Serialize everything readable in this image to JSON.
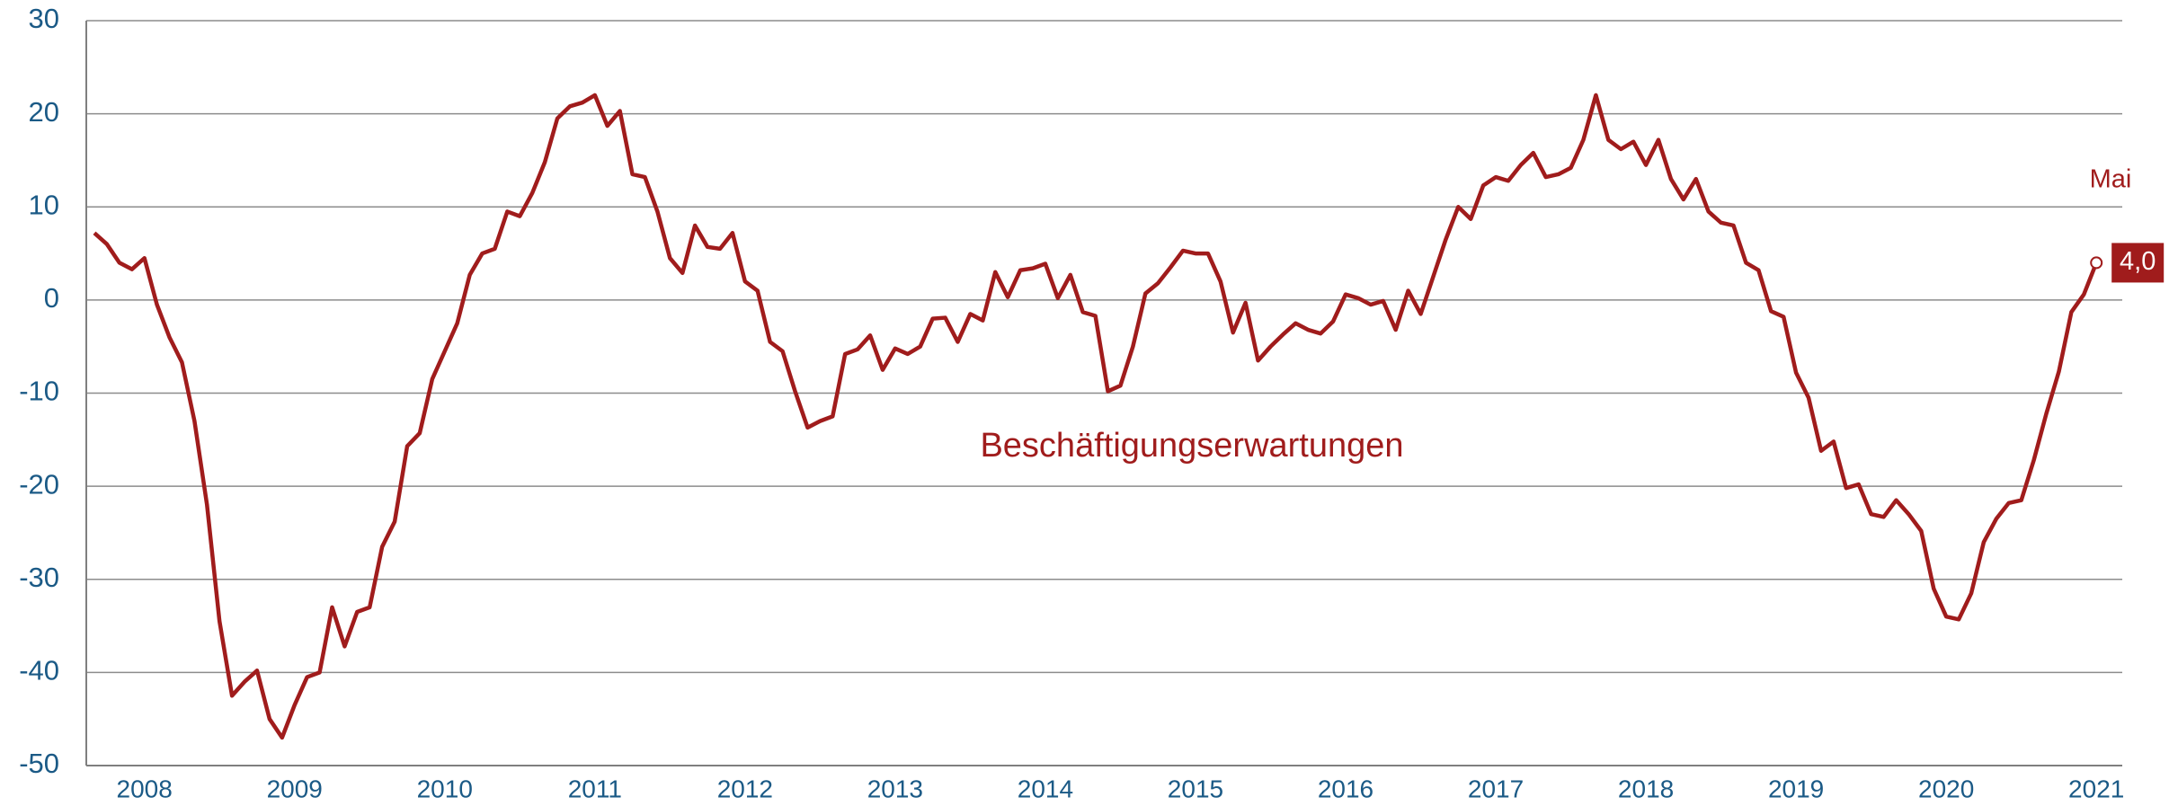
{
  "chart_data": {
    "type": "line",
    "categories": [
      null,
      null,
      null,
      null,
      "2008",
      null,
      null,
      null,
      null,
      null,
      null,
      null,
      null,
      null,
      null,
      null,
      "2009",
      null,
      null,
      null,
      null,
      null,
      null,
      null,
      null,
      null,
      null,
      null,
      "2010",
      null,
      null,
      null,
      null,
      null,
      null,
      null,
      null,
      null,
      null,
      null,
      "2011",
      null,
      null,
      null,
      null,
      null,
      null,
      null,
      null,
      null,
      null,
      null,
      "2012",
      null,
      null,
      null,
      null,
      null,
      null,
      null,
      null,
      null,
      null,
      null,
      "2013",
      null,
      null,
      null,
      null,
      null,
      null,
      null,
      null,
      null,
      null,
      null,
      "2014",
      null,
      null,
      null,
      null,
      null,
      null,
      null,
      null,
      null,
      null,
      null,
      "2015",
      null,
      null,
      null,
      null,
      null,
      null,
      null,
      null,
      null,
      null,
      null,
      "2016",
      null,
      null,
      null,
      null,
      null,
      null,
      null,
      null,
      null,
      null,
      null,
      "2017",
      null,
      null,
      null,
      null,
      null,
      null,
      null,
      null,
      null,
      null,
      null,
      "2018",
      null,
      null,
      null,
      null,
      null,
      null,
      null,
      null,
      null,
      null,
      null,
      "2019",
      null,
      null,
      null,
      null,
      null,
      null,
      null,
      null,
      null,
      null,
      null,
      "2020",
      null,
      null,
      null,
      null,
      null,
      null,
      null,
      null,
      null,
      null,
      null,
      "2021"
    ],
    "series": [
      {
        "color": "#a01c1c",
        "values": [
          7.2,
          6,
          4,
          3.3,
          4.5,
          -0.5,
          -4,
          -6.7,
          -13,
          -22,
          -34.5,
          -42.5,
          -41,
          -39.8,
          -45,
          -47,
          -43.5,
          -40.5,
          -40,
          -33,
          -37.2,
          -33.5,
          -33,
          -26.5,
          -23.8,
          -15.7,
          -14.3,
          -8.5,
          -5.5,
          -2.5,
          2.7,
          5,
          5.5,
          9.5,
          9,
          11.5,
          14.8,
          19.5,
          20.8,
          21.2,
          22,
          18.7,
          20.3,
          13.5,
          13.2,
          9.5,
          4.5,
          2.9,
          8,
          5.7,
          5.5,
          7.2,
          2,
          1,
          -4.5,
          -5.5,
          -9.8,
          -13.7,
          -13,
          -12.5,
          -5.8,
          -5.3,
          -3.8,
          -7.5,
          -5.2,
          -5.8,
          -5,
          -2,
          -1.9,
          -4.5,
          -1.5,
          -2.2,
          3,
          0.3,
          3.2,
          3.4,
          3.9,
          0.2,
          2.7,
          -1.3,
          -1.7,
          -9.8,
          -9.2,
          -5,
          0.7,
          1.8,
          3.5,
          5.3,
          5,
          5,
          2,
          -3.5,
          -0.3,
          -6.5,
          -5,
          -3.7,
          -2.5,
          -3.2,
          -3.6,
          -2.3,
          0.6,
          0.2,
          -0.5,
          -0.1,
          -3.2,
          1,
          -1.5,
          2.5,
          6.5,
          10,
          8.7,
          12.3,
          13.2,
          12.8,
          14.5,
          15.8,
          13.2,
          13.5,
          14.2,
          17.2,
          22,
          17.2,
          16.2,
          17,
          14.5,
          17.2,
          13,
          10.8,
          13,
          9.5,
          8.3,
          8,
          4,
          3.2,
          -1.2,
          -1.8,
          -7.8,
          -10.5,
          -16.2,
          -15.2,
          -20.2,
          -19.8,
          -23,
          -23.3,
          -21.5,
          -23,
          -24.8,
          -31,
          -34,
          -34.3,
          -31.5,
          -26,
          -23.5,
          -21.8,
          -21.5,
          -17.2,
          -12.2,
          -7.7,
          -1.3,
          0.6,
          4.0
        ],
        "value_labels": [
          null,
          null,
          null,
          null,
          null,
          null,
          null,
          null,
          null,
          null,
          null,
          null,
          null,
          null,
          null,
          null,
          null,
          null,
          null,
          null,
          null,
          null,
          null,
          null,
          null,
          null,
          null,
          null,
          null,
          null,
          null,
          null,
          null,
          null,
          null,
          null,
          null,
          null,
          null,
          null,
          null,
          null,
          null,
          null,
          null,
          null,
          null,
          null,
          null,
          null,
          null,
          null,
          null,
          null,
          null,
          null,
          null,
          null,
          null,
          null,
          null,
          null,
          null,
          null,
          null,
          null,
          null,
          null,
          null,
          null,
          null,
          null,
          null,
          null,
          null,
          null,
          null,
          null,
          null,
          null,
          null,
          null,
          null,
          null,
          null,
          null,
          null,
          null,
          null,
          null,
          null,
          null,
          null,
          null,
          null,
          null,
          null,
          null,
          null,
          null,
          null,
          null,
          null,
          null,
          null,
          null,
          null,
          null,
          null,
          null,
          null,
          null,
          null,
          null,
          null,
          null,
          null,
          null,
          null,
          null,
          null,
          null,
          null,
          null,
          null,
          null,
          null,
          null,
          null,
          null,
          null,
          null,
          null,
          null,
          null,
          null,
          null,
          null,
          null,
          null,
          null,
          null,
          null,
          null,
          null,
          null,
          null,
          null,
          null,
          null,
          null,
          null,
          null,
          null,
          null,
          null,
          null,
          null,
          null,
          null,
          "4,0"
        ]
      }
    ],
    "annotations": [
      "Beschäftigungserwartungen",
      "Mai"
    ],
    "ylim": [
      -50,
      30
    ],
    "yticks": [
      -50,
      -40,
      -30,
      -20,
      -10,
      0,
      10,
      20,
      30
    ],
    "grid": true
  }
}
